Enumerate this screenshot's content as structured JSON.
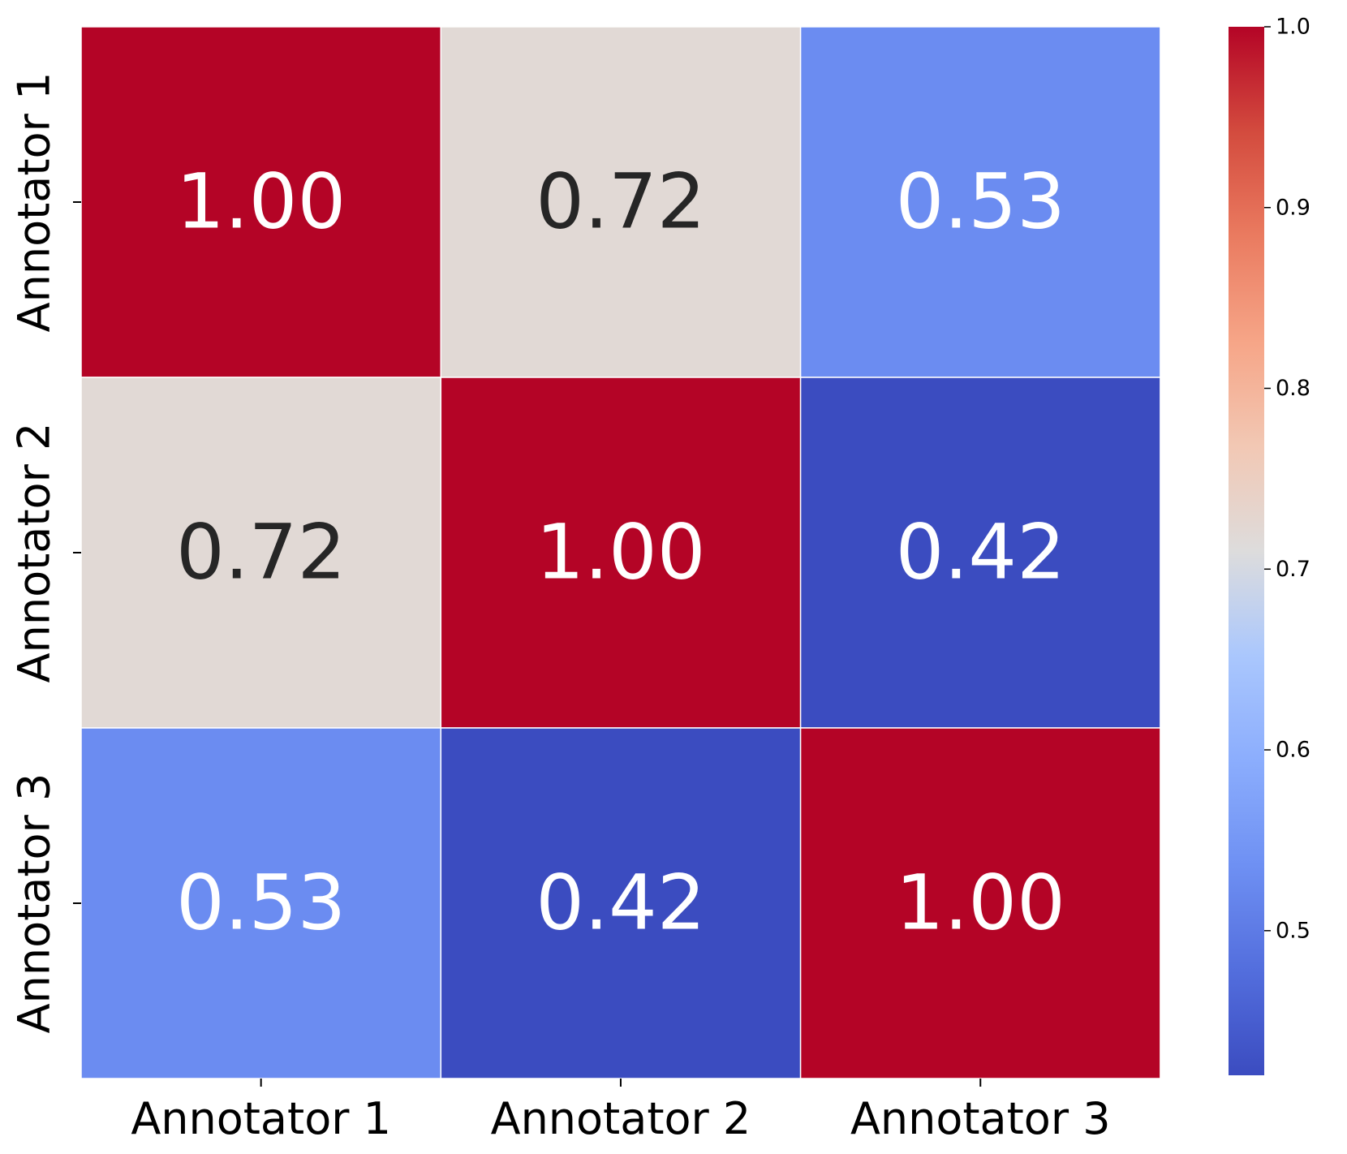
{
  "chart_data": {
    "type": "heatmap",
    "title": "",
    "xlabel": "",
    "ylabel": "",
    "x_categories": [
      "Annotator 1",
      "Annotator 2",
      "Annotator 3"
    ],
    "y_categories": [
      "Annotator 1",
      "Annotator 2",
      "Annotator 3"
    ],
    "values": [
      [
        1.0,
        0.72,
        0.53
      ],
      [
        0.72,
        1.0,
        0.42
      ],
      [
        0.53,
        0.42,
        1.0
      ]
    ],
    "value_labels": [
      [
        "1.00",
        "0.72",
        "0.53"
      ],
      [
        "0.72",
        "1.00",
        "0.42"
      ],
      [
        "0.53",
        "0.42",
        "1.00"
      ]
    ],
    "colormap": "coolwarm",
    "colorbar": {
      "range": [
        0.42,
        1.0
      ],
      "ticks": [
        0.5,
        0.6,
        0.7,
        0.8,
        0.9,
        1.0
      ],
      "tick_labels": [
        "0.5",
        "0.6",
        "0.7",
        "0.8",
        "0.9",
        "1.0"
      ],
      "placement": "right"
    },
    "colors": {
      "high": "#b40426",
      "mid": "#dddcdc",
      "low": "#3b4cc0",
      "light_text": "#ffffff",
      "dark_text": "#262626"
    },
    "grid": false
  }
}
